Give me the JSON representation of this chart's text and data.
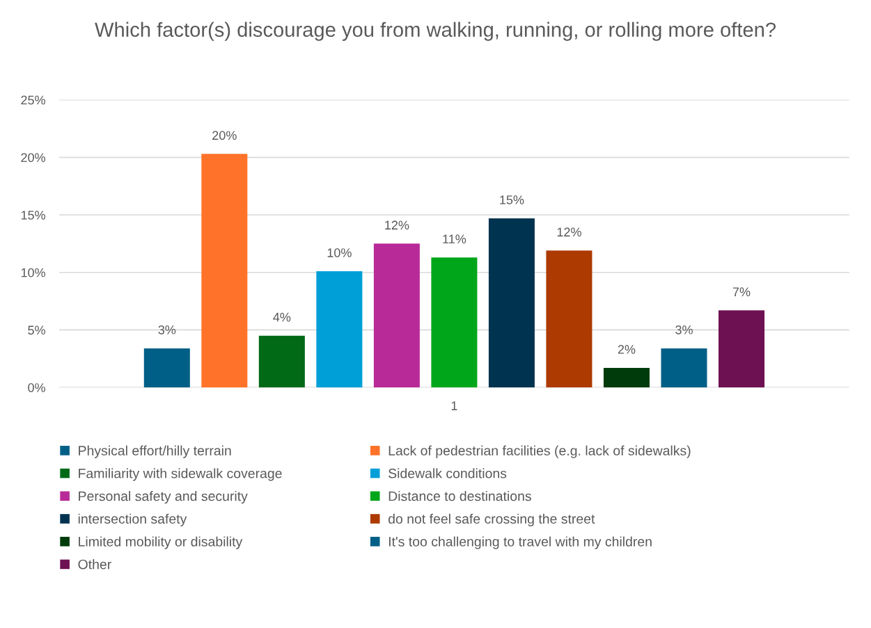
{
  "chart_data": {
    "type": "bar",
    "title": "Which factor(s) discourage you from walking, running, or rolling more often?",
    "categories": [
      "1"
    ],
    "series": [
      {
        "name": "Physical effort/hilly terrain",
        "color": "#005f86",
        "values": [
          3.4
        ],
        "value_labels": [
          "3%"
        ]
      },
      {
        "name": "Lack of pedestrian facilities (e.g. lack of sidewalks)",
        "color": "#ff7229",
        "values": [
          20.3
        ],
        "value_labels": [
          "20%"
        ]
      },
      {
        "name": "Familiarity with sidewalk coverage",
        "color": "#006a17",
        "values": [
          4.5
        ],
        "value_labels": [
          "4%"
        ]
      },
      {
        "name": "Sidewalk conditions",
        "color": "#009fd8",
        "values": [
          10.1
        ],
        "value_labels": [
          "10%"
        ]
      },
      {
        "name": "Personal safety and security",
        "color": "#b82a98",
        "values": [
          12.5
        ],
        "value_labels": [
          "12%"
        ]
      },
      {
        "name": "Distance to destinations",
        "color": "#00a61a",
        "values": [
          11.3
        ],
        "value_labels": [
          "11%"
        ]
      },
      {
        "name": "intersection safety",
        "color": "#003350",
        "values": [
          14.7
        ],
        "value_labels": [
          "15%"
        ]
      },
      {
        "name": "do not feel safe crossing the street",
        "color": "#ad3a00",
        "values": [
          11.9
        ],
        "value_labels": [
          "12%"
        ]
      },
      {
        "name": "Limited mobility or disability",
        "color": "#003b0b",
        "values": [
          1.7
        ],
        "value_labels": [
          "2%"
        ]
      },
      {
        "name": "It's too challenging to travel with my children",
        "color": "#005f86",
        "values": [
          3.4
        ],
        "value_labels": [
          "3%"
        ]
      },
      {
        "name": "Other",
        "color": "#6d1152",
        "values": [
          6.7
        ],
        "value_labels": [
          "7%"
        ]
      }
    ],
    "ylim": [
      0,
      25
    ],
    "yticks": [
      {
        "value": 0,
        "label": "0%"
      },
      {
        "value": 5,
        "label": "5%"
      },
      {
        "value": 10,
        "label": "10%"
      },
      {
        "value": 15,
        "label": "15%"
      },
      {
        "value": 20,
        "label": "20%"
      },
      {
        "value": 25,
        "label": "25%"
      }
    ],
    "grid": "y",
    "legend": "bottom"
  }
}
